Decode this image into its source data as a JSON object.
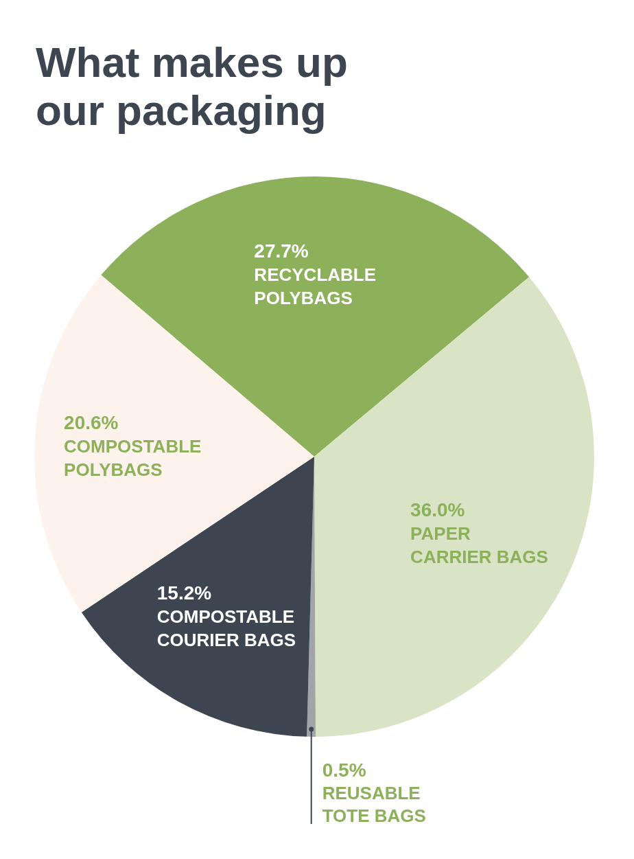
{
  "chart_data": {
    "type": "pie",
    "title": "What makes up our packaging",
    "categories": [
      "RECYCLABLE POLYBAGS",
      "PAPER CARRIER BAGS",
      "REUSABLE TOTE BAGS",
      "COMPOSTABLE COURIER BAGS",
      "COMPOSTABLE POLYBAGS"
    ],
    "values": [
      27.7,
      36.0,
      0.5,
      15.2,
      20.6
    ],
    "colors": [
      "#8db05a",
      "#d8e4c5",
      "#a1a4a9",
      "#3c4550",
      "#fdf3ec"
    ],
    "value_labels": [
      "27.7%",
      "36.0%",
      "0.5%",
      "15.2%",
      "20.6%"
    ]
  }
}
